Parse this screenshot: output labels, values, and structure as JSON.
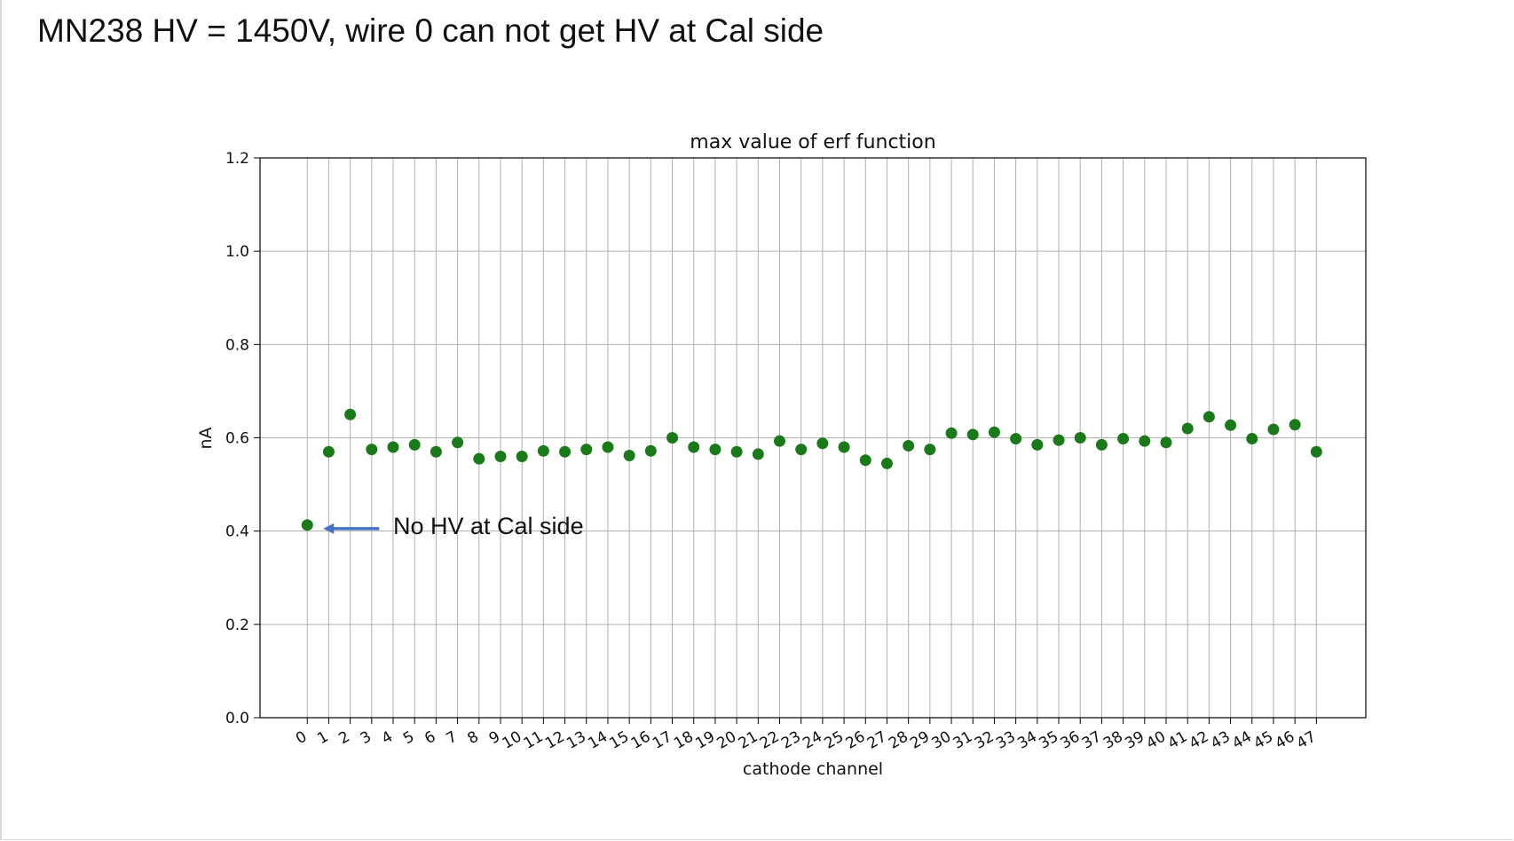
{
  "slide": {
    "title": "MN238 HV = 1450V, wire 0 can not get HV at Cal side"
  },
  "annotation": {
    "text": "No HV at Cal side",
    "arrow_color": "#4472c4"
  },
  "chart_data": {
    "type": "scatter",
    "title": "max value of erf function",
    "xlabel": "cathode channel",
    "ylabel": "nA",
    "ylim": [
      0.0,
      1.2
    ],
    "yticks": [
      0.0,
      0.2,
      0.4,
      0.6,
      0.8,
      1.0,
      1.2
    ],
    "ytick_labels": [
      "0.0",
      "0.2",
      "0.4",
      "0.6",
      "0.8",
      "1.0",
      "1.2"
    ],
    "xlim": [
      -2.2,
      49.3
    ],
    "grid": true,
    "marker_color": "#1a7a1a",
    "x": [
      0,
      1,
      2,
      3,
      4,
      5,
      6,
      7,
      8,
      9,
      10,
      11,
      12,
      13,
      14,
      15,
      16,
      17,
      18,
      19,
      20,
      21,
      22,
      23,
      24,
      25,
      26,
      27,
      28,
      29,
      30,
      31,
      32,
      33,
      34,
      35,
      36,
      37,
      38,
      39,
      40,
      41,
      42,
      43,
      44,
      45,
      46,
      47
    ],
    "xtick_labels": [
      "0",
      "1",
      "2",
      "3",
      "4",
      "5",
      "6",
      "7",
      "8",
      "9",
      "10",
      "11",
      "12",
      "13",
      "14",
      "15",
      "16",
      "17",
      "18",
      "19",
      "20",
      "21",
      "22",
      "23",
      "24",
      "25",
      "26",
      "27",
      "28",
      "29",
      "30",
      "31",
      "32",
      "33",
      "34",
      "35",
      "36",
      "37",
      "38",
      "39",
      "40",
      "41",
      "42",
      "43",
      "44",
      "45",
      "46",
      "47"
    ],
    "y": [
      0.413,
      0.57,
      0.65,
      0.575,
      0.58,
      0.585,
      0.57,
      0.59,
      0.555,
      0.56,
      0.56,
      0.572,
      0.57,
      0.575,
      0.58,
      0.562,
      0.572,
      0.6,
      0.58,
      0.575,
      0.57,
      0.565,
      0.593,
      0.575,
      0.588,
      0.58,
      0.552,
      0.545,
      0.583,
      0.575,
      0.61,
      0.607,
      0.612,
      0.598,
      0.585,
      0.595,
      0.6,
      0.585,
      0.598,
      0.593,
      0.59,
      0.62,
      0.645,
      0.627,
      0.598,
      0.618,
      0.628,
      0.57
    ],
    "annotation_target": {
      "x": 0,
      "y": 0.413
    }
  }
}
